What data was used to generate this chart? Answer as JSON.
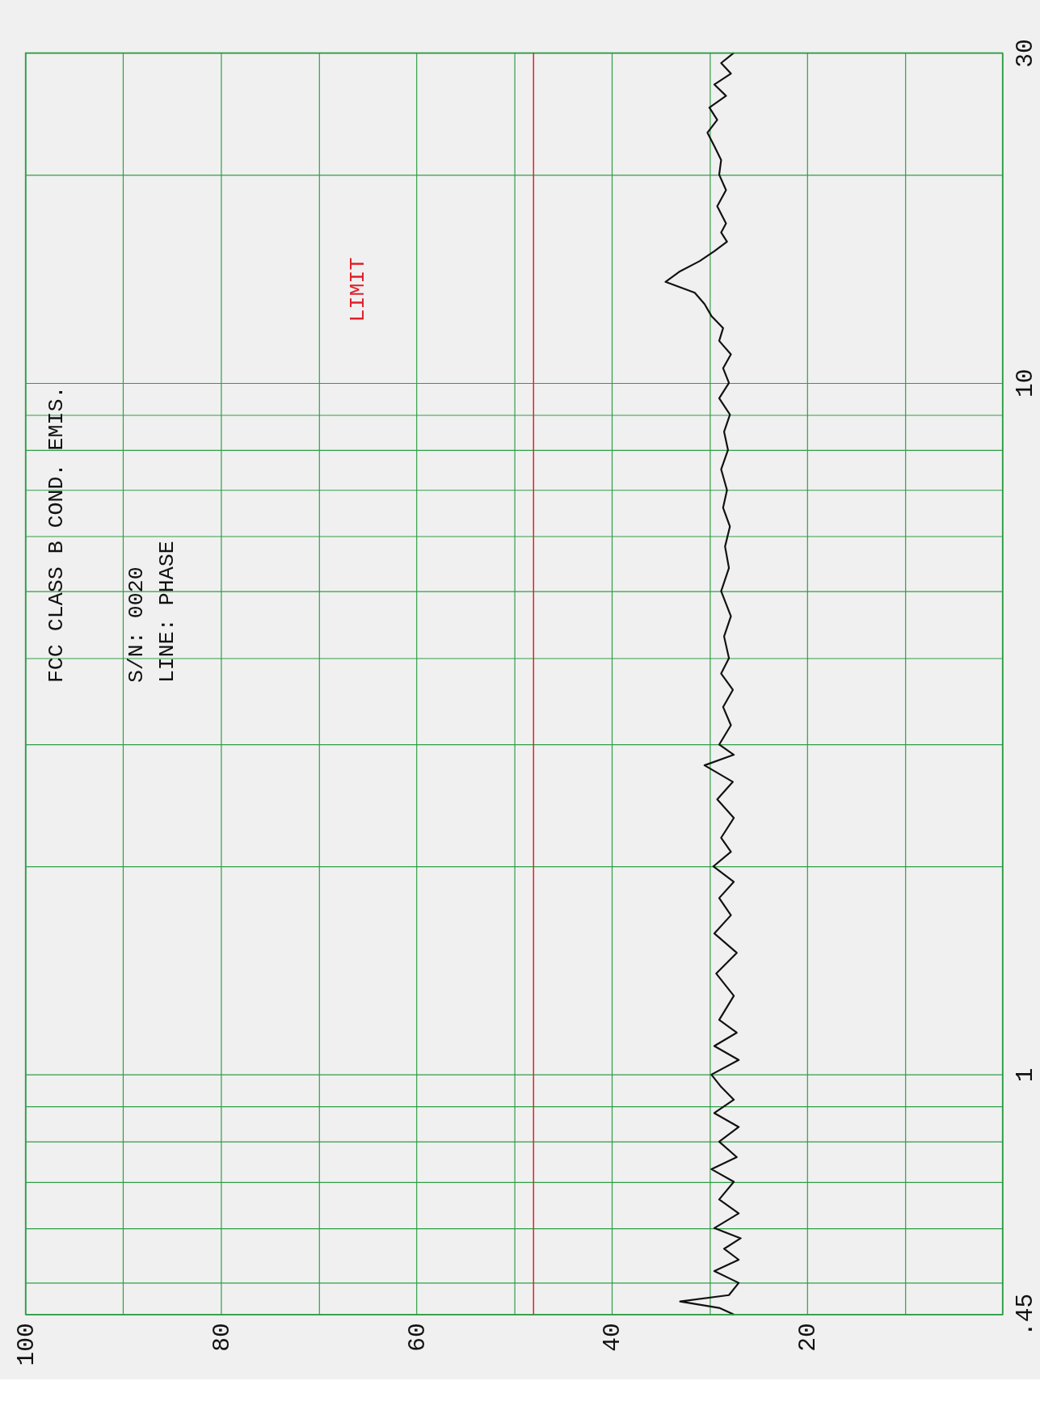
{
  "chart_data": {
    "type": "line",
    "orientation": "horizontal",
    "title": "FCC  CLASS B COND. EMIS.",
    "annotations": [
      "S/N: 0020",
      "LINE: PHASE"
    ],
    "x": [
      0.45,
      0.46,
      0.47,
      0.48,
      0.5,
      0.52,
      0.54,
      0.56,
      0.58,
      0.6,
      0.63,
      0.66,
      0.7,
      0.73,
      0.76,
      0.8,
      0.84,
      0.88,
      0.92,
      0.96,
      1.0,
      1.05,
      1.1,
      1.15,
      1.2,
      1.3,
      1.4,
      1.5,
      1.6,
      1.7,
      1.8,
      1.9,
      2.0,
      2.1,
      2.2,
      2.35,
      2.5,
      2.65,
      2.8,
      2.9,
      3.0,
      3.2,
      3.4,
      3.6,
      3.8,
      4.0,
      4.3,
      4.6,
      5.0,
      5.4,
      5.8,
      6.2,
      6.6,
      7.0,
      7.5,
      8.0,
      8.5,
      9.0,
      9.5,
      10,
      10.5,
      11,
      11.5,
      12,
      12.5,
      13,
      13.5,
      14,
      14.5,
      15,
      15.5,
      16,
      16.5,
      17,
      18,
      19,
      20,
      21,
      22,
      23,
      24,
      25,
      26,
      27,
      28,
      29,
      30
    ],
    "series": [
      {
        "color": "#111111",
        "values": [
          27.5,
          29,
          33,
          28,
          27,
          29.5,
          27,
          28.5,
          26.8,
          29.5,
          27,
          29,
          27.5,
          29.8,
          27.2,
          29,
          27,
          29.5,
          27.5,
          28.8,
          29.8,
          27,
          29.5,
          27.2,
          29,
          27.5,
          29.3,
          27.2,
          29.5,
          27.8,
          29,
          27.5,
          29.6,
          27.8,
          28.8,
          27.5,
          29.2,
          27.6,
          30.5,
          27.5,
          29,
          27.8,
          28.6,
          27.6,
          28.8,
          28,
          28.5,
          27.8,
          28.8,
          28,
          28.4,
          27.9,
          28.6,
          28.2,
          28.8,
          28.1,
          28.5,
          27.9,
          29,
          28,
          28.6,
          27.8,
          29,
          28.6,
          29.8,
          30.5,
          31.5,
          34.5,
          33,
          31,
          29.5,
          28.2,
          28.8,
          28.3,
          29.2,
          28.3,
          29,
          28.8,
          29.5,
          30.2,
          29.2,
          30,
          28.3,
          29.5,
          27.8,
          28.8,
          27.5
        ]
      }
    ],
    "xlim": [
      100,
      0
    ],
    "xticks": [
      100,
      {
        "value": 90,
        "label": null
      },
      80,
      {
        "value": 70,
        "label": null
      },
      60,
      {
        "value": 50,
        "label": null
      },
      40,
      {
        "value": 30,
        "label": null
      },
      20,
      {
        "value": 10,
        "label": null
      },
      {
        "value": 0,
        "label": null
      }
    ],
    "ylim": [
      0.45,
      30
    ],
    "yticks": [
      {
        "value": 0.45,
        "label": ".45"
      },
      {
        "value": 0.5,
        "label": null
      },
      {
        "value": 0.6,
        "label": null
      },
      {
        "value": 0.7,
        "label": null
      },
      {
        "value": 0.8,
        "label": null
      },
      {
        "value": 0.9,
        "label": null
      },
      1,
      {
        "value": 2,
        "label": null
      },
      {
        "value": 3,
        "label": null
      },
      {
        "value": 4,
        "label": null
      },
      {
        "value": 5,
        "label": null
      },
      {
        "value": 6,
        "label": null
      },
      {
        "value": 7,
        "label": null
      },
      {
        "value": 8,
        "label": null
      },
      {
        "value": 9,
        "label": null
      },
      10,
      {
        "value": 20,
        "label": null
      },
      30
    ],
    "log": "y",
    "grid": true,
    "line_style": "solid",
    "ref_lines": [
      {
        "axis": "x",
        "value": 48,
        "label": "LIMIT",
        "color": "#e0202a"
      }
    ]
  }
}
